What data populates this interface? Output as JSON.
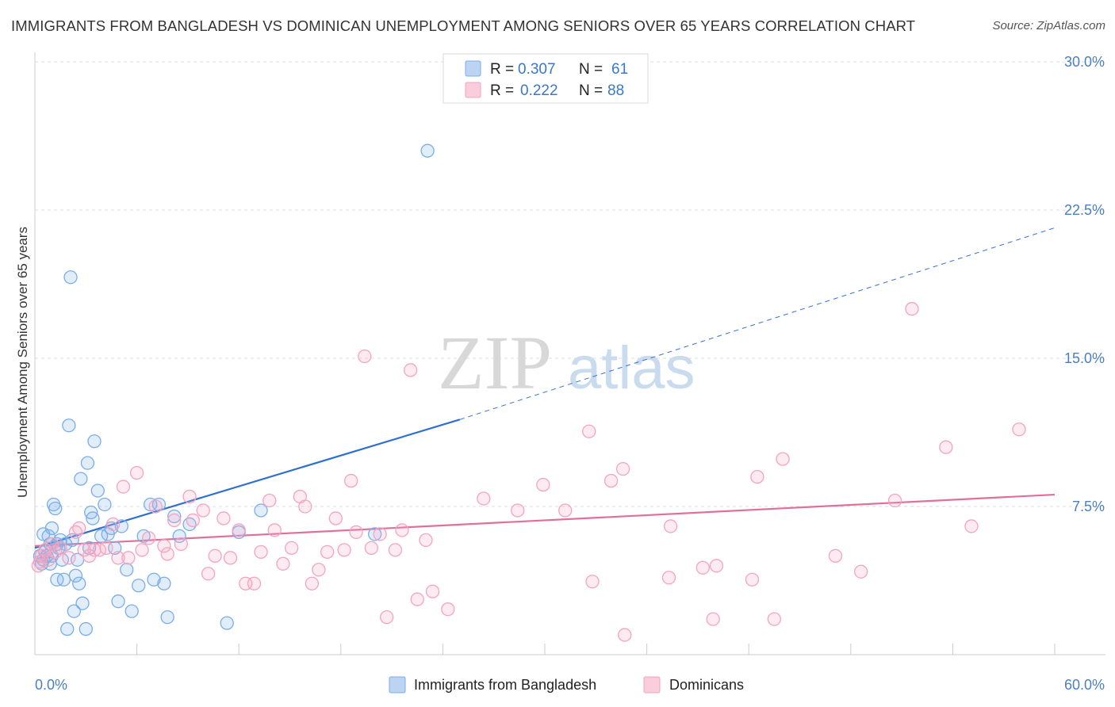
{
  "title": "IMMIGRANTS FROM BANGLADESH VS DOMINICAN UNEMPLOYMENT AMONG SENIORS OVER 65 YEARS CORRELATION CHART",
  "source": "Source: ZipAtlas.com",
  "watermark": {
    "zip": "ZIP",
    "atlas": "atlas"
  },
  "chart_data": {
    "type": "scatter",
    "xlabel": "",
    "ylabel": "Unemployment Among Seniors over 65 years",
    "xlim": [
      0,
      60
    ],
    "ylim": [
      0,
      30
    ],
    "x_tick_labels": [
      "0.0%",
      "60.0%"
    ],
    "y_ticks": [
      7.5,
      15.0,
      22.5,
      30.0
    ],
    "y_tick_labels": [
      "7.5%",
      "15.0%",
      "22.5%",
      "30.0%"
    ],
    "grid": "horizontal dashed",
    "legend_placement": "top-center",
    "stats": [
      {
        "r_label": "R =",
        "r_value": "0.307",
        "n_label": "N =",
        "n_value": "61"
      },
      {
        "r_label": "R =",
        "r_value": "0.222",
        "n_label": "N =",
        "n_value": "88"
      }
    ],
    "series": [
      {
        "name": "Immigrants from Bangladesh",
        "color": "#7aaee8",
        "line_color": "#2f6fd0",
        "trend": {
          "x0": 0,
          "y0": 5.4,
          "x1": 25,
          "y1": 11.9,
          "dash_to_x": 60,
          "dash_to_y": 21.6
        },
        "points": [
          [
            0.3,
            5.0
          ],
          [
            0.4,
            4.6
          ],
          [
            0.5,
            4.8
          ],
          [
            0.6,
            5.2
          ],
          [
            0.7,
            5.0
          ],
          [
            0.5,
            6.1
          ],
          [
            0.8,
            6.0
          ],
          [
            0.9,
            5.6
          ],
          [
            1.0,
            6.4
          ],
          [
            1.1,
            7.6
          ],
          [
            1.2,
            7.4
          ],
          [
            1.3,
            5.6
          ],
          [
            1.4,
            5.4
          ],
          [
            1.5,
            5.8
          ],
          [
            1.6,
            4.8
          ],
          [
            1.7,
            3.8
          ],
          [
            1.8,
            5.6
          ],
          [
            1.9,
            1.3
          ],
          [
            2.0,
            11.6
          ],
          [
            2.1,
            19.1
          ],
          [
            2.2,
            5.8
          ],
          [
            2.3,
            2.2
          ],
          [
            2.4,
            4.0
          ],
          [
            2.5,
            4.8
          ],
          [
            2.6,
            3.6
          ],
          [
            2.7,
            8.9
          ],
          [
            2.8,
            2.6
          ],
          [
            3.0,
            1.3
          ],
          [
            3.1,
            9.7
          ],
          [
            3.2,
            5.4
          ],
          [
            3.3,
            7.2
          ],
          [
            3.4,
            6.9
          ],
          [
            3.5,
            10.8
          ],
          [
            3.7,
            8.3
          ],
          [
            3.9,
            6.0
          ],
          [
            4.1,
            7.6
          ],
          [
            4.3,
            6.1
          ],
          [
            4.5,
            6.4
          ],
          [
            4.7,
            5.4
          ],
          [
            4.9,
            2.7
          ],
          [
            5.1,
            6.5
          ],
          [
            5.4,
            4.3
          ],
          [
            5.7,
            2.2
          ],
          [
            6.1,
            3.5
          ],
          [
            6.4,
            6.0
          ],
          [
            6.8,
            7.6
          ],
          [
            7.0,
            3.8
          ],
          [
            7.3,
            7.6
          ],
          [
            7.6,
            3.6
          ],
          [
            7.8,
            1.9
          ],
          [
            8.2,
            7.0
          ],
          [
            8.5,
            6.0
          ],
          [
            9.1,
            6.6
          ],
          [
            11.3,
            1.6
          ],
          [
            12.0,
            6.2
          ],
          [
            13.3,
            7.3
          ],
          [
            1.3,
            3.8
          ],
          [
            0.9,
            4.6
          ],
          [
            20.0,
            6.1
          ],
          [
            23.1,
            25.5
          ],
          [
            1.0,
            5.0
          ]
        ]
      },
      {
        "name": "Dominicans",
        "color": "#f4a3c0",
        "line_color": "#e0709a",
        "trend": {
          "x0": 0,
          "y0": 5.5,
          "x1": 60,
          "y1": 8.1
        },
        "points": [
          [
            0.2,
            4.5
          ],
          [
            0.4,
            5.0
          ],
          [
            0.6,
            5.3
          ],
          [
            0.8,
            4.8
          ],
          [
            1.0,
            5.6
          ],
          [
            1.2,
            5.2
          ],
          [
            1.5,
            5.4
          ],
          [
            2.0,
            4.9
          ],
          [
            2.4,
            6.2
          ],
          [
            2.6,
            6.4
          ],
          [
            2.9,
            5.3
          ],
          [
            3.2,
            5.0
          ],
          [
            3.5,
            5.3
          ],
          [
            3.8,
            5.3
          ],
          [
            4.2,
            5.4
          ],
          [
            4.6,
            6.6
          ],
          [
            4.9,
            4.9
          ],
          [
            5.2,
            8.5
          ],
          [
            5.5,
            4.9
          ],
          [
            6.0,
            9.2
          ],
          [
            6.3,
            5.3
          ],
          [
            6.7,
            5.9
          ],
          [
            7.1,
            7.5
          ],
          [
            7.6,
            5.5
          ],
          [
            7.8,
            5.1
          ],
          [
            8.2,
            6.8
          ],
          [
            8.6,
            5.6
          ],
          [
            9.1,
            8.0
          ],
          [
            9.3,
            6.8
          ],
          [
            9.9,
            7.3
          ],
          [
            10.2,
            4.1
          ],
          [
            10.6,
            5.0
          ],
          [
            11.1,
            6.9
          ],
          [
            11.5,
            4.9
          ],
          [
            12.0,
            6.3
          ],
          [
            12.4,
            3.6
          ],
          [
            12.9,
            3.6
          ],
          [
            13.3,
            5.2
          ],
          [
            13.8,
            7.8
          ],
          [
            14.1,
            6.3
          ],
          [
            14.6,
            4.6
          ],
          [
            15.1,
            5.4
          ],
          [
            15.6,
            8.0
          ],
          [
            15.9,
            7.5
          ],
          [
            16.3,
            3.6
          ],
          [
            16.7,
            4.3
          ],
          [
            17.2,
            5.2
          ],
          [
            17.7,
            6.9
          ],
          [
            18.2,
            5.3
          ],
          [
            18.6,
            8.8
          ],
          [
            18.9,
            6.2
          ],
          [
            19.4,
            15.1
          ],
          [
            19.8,
            5.4
          ],
          [
            20.3,
            6.1
          ],
          [
            20.7,
            1.9
          ],
          [
            21.2,
            5.3
          ],
          [
            21.6,
            6.3
          ],
          [
            22.1,
            14.4
          ],
          [
            22.5,
            2.8
          ],
          [
            23.0,
            5.8
          ],
          [
            23.4,
            3.2
          ],
          [
            24.3,
            2.3
          ],
          [
            26.4,
            7.9
          ],
          [
            28.4,
            7.3
          ],
          [
            29.9,
            8.6
          ],
          [
            31.2,
            7.3
          ],
          [
            32.6,
            11.3
          ],
          [
            32.8,
            3.7
          ],
          [
            33.9,
            8.8
          ],
          [
            34.6,
            9.4
          ],
          [
            34.7,
            1.0
          ],
          [
            37.3,
            3.9
          ],
          [
            37.4,
            6.5
          ],
          [
            39.3,
            4.4
          ],
          [
            39.9,
            1.8
          ],
          [
            40.1,
            4.5
          ],
          [
            42.2,
            3.8
          ],
          [
            42.5,
            9.0
          ],
          [
            43.5,
            1.8
          ],
          [
            44.0,
            9.9
          ],
          [
            47.1,
            5.0
          ],
          [
            48.6,
            4.2
          ],
          [
            50.6,
            7.8
          ],
          [
            51.6,
            17.5
          ],
          [
            57.9,
            11.4
          ],
          [
            53.6,
            10.5
          ],
          [
            55.1,
            6.5
          ],
          [
            0.3,
            4.7
          ]
        ]
      }
    ]
  },
  "bottom_legend": [
    {
      "label": "Immigrants from Bangladesh"
    },
    {
      "label": "Dominicans"
    }
  ]
}
